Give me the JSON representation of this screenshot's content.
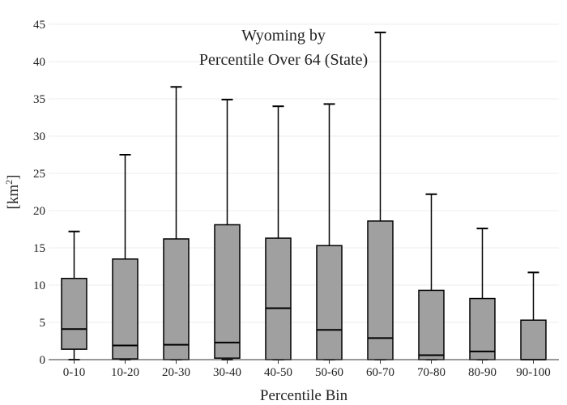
{
  "chart_data": {
    "type": "box",
    "title_line1": "Wyoming  by",
    "title_line2": "Percentile Over 64 (State)",
    "xlabel": "Percentile Bin",
    "ylabel_base": "[km",
    "ylabel_sup": "2",
    "ylabel_end": "]",
    "ylim": [
      0,
      45
    ],
    "yticks": [
      0,
      5,
      10,
      15,
      20,
      25,
      30,
      35,
      40,
      45
    ],
    "grid": true,
    "box_color": "#a0a0a0",
    "categories": [
      "0-10",
      "10-20",
      "20-30",
      "30-40",
      "40-50",
      "50-60",
      "60-70",
      "70-80",
      "80-90",
      "90-100"
    ],
    "boxes": [
      {
        "min": 0.0,
        "q1": 1.4,
        "median": 4.1,
        "q3": 10.9,
        "max": 17.2
      },
      {
        "min": 0.0,
        "q1": 0.1,
        "median": 1.9,
        "q3": 13.5,
        "max": 27.5
      },
      {
        "min": 0.0,
        "q1": 0.0,
        "median": 2.0,
        "q3": 16.2,
        "max": 36.6
      },
      {
        "min": 0.0,
        "q1": 0.2,
        "median": 2.3,
        "q3": 18.1,
        "max": 34.9
      },
      {
        "min": 0.0,
        "q1": 0.0,
        "median": 6.9,
        "q3": 16.3,
        "max": 34.0
      },
      {
        "min": 0.0,
        "q1": 0.0,
        "median": 4.0,
        "q3": 15.3,
        "max": 34.3
      },
      {
        "min": 0.0,
        "q1": 0.0,
        "median": 2.9,
        "q3": 18.6,
        "max": 43.9
      },
      {
        "min": 0.0,
        "q1": 0.0,
        "median": 0.6,
        "q3": 9.3,
        "max": 22.2
      },
      {
        "min": 0.0,
        "q1": 0.0,
        "median": 1.1,
        "q3": 8.2,
        "max": 17.6
      },
      {
        "min": 0.0,
        "q1": 0.0,
        "median": 0.0,
        "q3": 5.3,
        "max": 11.7
      }
    ]
  }
}
